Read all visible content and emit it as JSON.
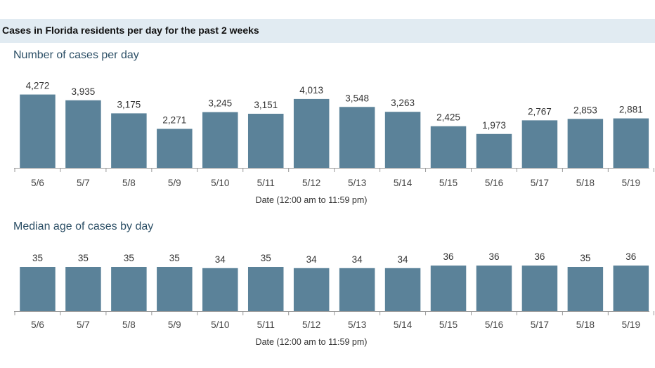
{
  "header": {
    "title": "Cases in Florida residents per day for the past 2 weeks"
  },
  "colors": {
    "bar": "#5b8299",
    "banner": "#e1ebf2",
    "axis": "#999999",
    "title": "#2c4f66"
  },
  "chart_data": [
    {
      "type": "bar",
      "title": "Number of cases per day",
      "xlabel": "Date (12:00 am to 11:59 pm)",
      "ylabel": "",
      "categories": [
        "5/6",
        "5/7",
        "5/8",
        "5/9",
        "5/10",
        "5/11",
        "5/12",
        "5/13",
        "5/14",
        "5/15",
        "5/16",
        "5/17",
        "5/18",
        "5/19"
      ],
      "values": [
        4272,
        3935,
        3175,
        2271,
        3245,
        3151,
        4013,
        3548,
        3263,
        2425,
        1973,
        2767,
        2853,
        2881
      ],
      "data_labels": [
        "4,272",
        "3,935",
        "3,175",
        "2,271",
        "3,245",
        "3,151",
        "4,013",
        "3,548",
        "3,263",
        "2,425",
        "1,973",
        "2,767",
        "2,853",
        "2,881"
      ],
      "ylim": [
        0,
        4500
      ],
      "grid": false,
      "legend": "none"
    },
    {
      "type": "bar",
      "title": "Median age of cases by day",
      "xlabel": "Date (12:00 am to 11:59 pm)",
      "ylabel": "",
      "categories": [
        "5/6",
        "5/7",
        "5/8",
        "5/9",
        "5/10",
        "5/11",
        "5/12",
        "5/13",
        "5/14",
        "5/15",
        "5/16",
        "5/17",
        "5/18",
        "5/19"
      ],
      "values": [
        35,
        35,
        35,
        35,
        34,
        35,
        34,
        34,
        34,
        36,
        36,
        36,
        35,
        36
      ],
      "data_labels": [
        "35",
        "35",
        "35",
        "35",
        "34",
        "35",
        "34",
        "34",
        "34",
        "36",
        "36",
        "36",
        "35",
        "36"
      ],
      "ylim": [
        0,
        40
      ],
      "grid": false,
      "legend": "none"
    }
  ]
}
